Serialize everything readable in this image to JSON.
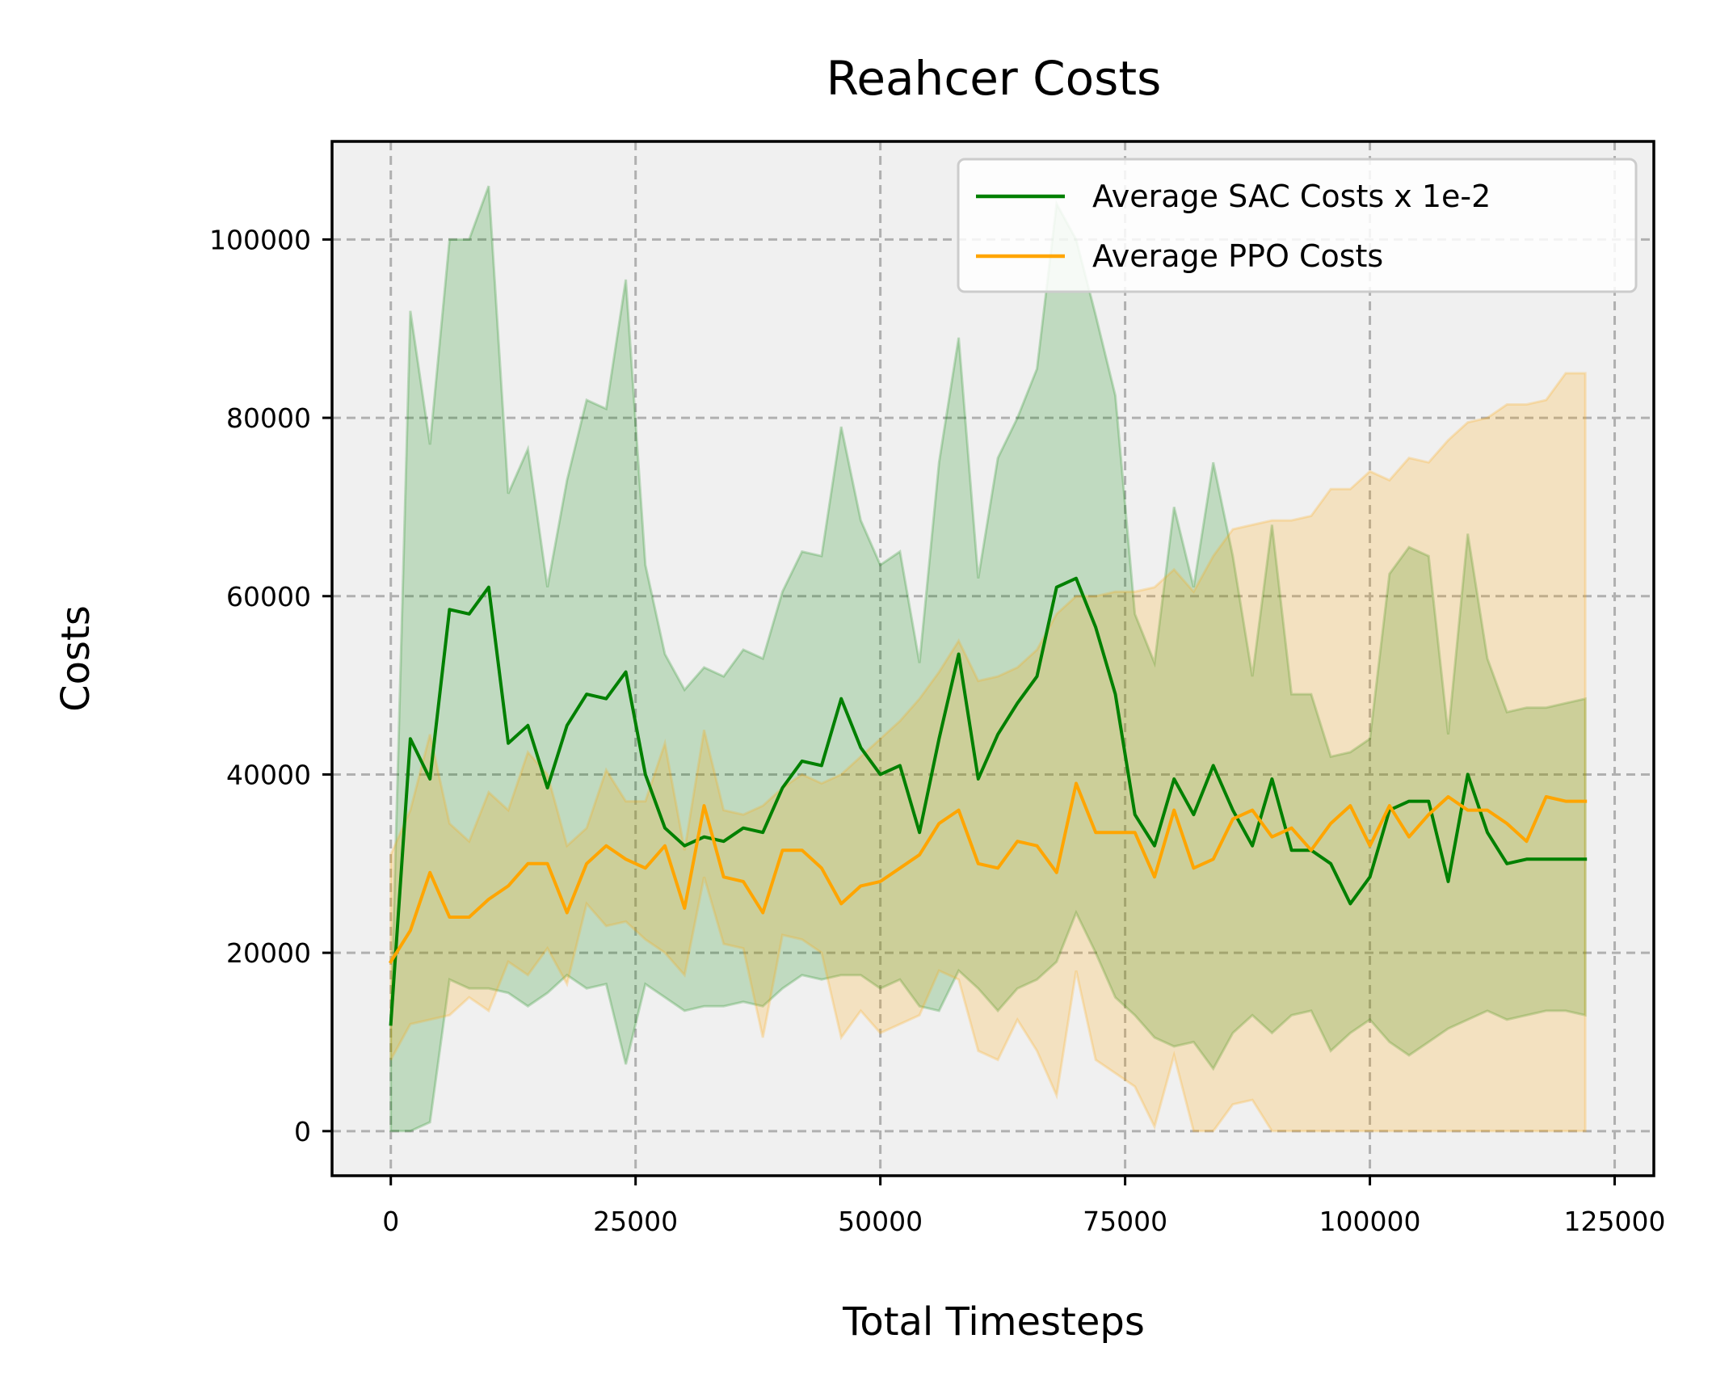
{
  "chart_data": {
    "type": "line",
    "title": "Reahcer Costs",
    "xlabel": "Total Timesteps",
    "ylabel": "Costs",
    "xlim": [
      -6000,
      129000
    ],
    "ylim": [
      -5000,
      111000
    ],
    "xticks": [
      0,
      25000,
      50000,
      75000,
      100000,
      125000
    ],
    "yticks": [
      0,
      20000,
      40000,
      60000,
      80000,
      100000
    ],
    "grid": true,
    "legend_position": "top-right",
    "x": [
      0,
      2000,
      4000,
      6000,
      8000,
      10000,
      12000,
      14000,
      16000,
      18000,
      20000,
      22000,
      24000,
      26000,
      28000,
      30000,
      32000,
      34000,
      36000,
      38000,
      40000,
      42000,
      44000,
      46000,
      48000,
      50000,
      52000,
      54000,
      56000,
      58000,
      60000,
      62000,
      64000,
      66000,
      68000,
      70000,
      72000,
      74000,
      76000,
      78000,
      80000,
      82000,
      84000,
      86000,
      88000,
      90000,
      92000,
      94000,
      96000,
      98000,
      100000,
      102000,
      104000,
      106000,
      108000,
      110000,
      112000,
      114000,
      116000,
      118000,
      120000,
      122000
    ],
    "series": [
      {
        "name": "Average SAC Costs x 1e-2",
        "color": "#008000",
        "fill_color": "#008000",
        "values": [
          12000,
          44000,
          39500,
          58500,
          58000,
          61000,
          43500,
          45500,
          38500,
          45500,
          49000,
          48500,
          51500,
          40000,
          34000,
          32000,
          33000,
          32500,
          34000,
          33500,
          38500,
          41500,
          41000,
          48500,
          43000,
          40000,
          41000,
          33500,
          44000,
          53500,
          39500,
          44500,
          48000,
          51000,
          61000,
          62000,
          56500,
          49000,
          35500,
          32000,
          39500,
          35500,
          41000,
          36000,
          32000,
          39500,
          31500,
          31500,
          30000,
          25500,
          28500,
          36000,
          37000,
          37000,
          28000,
          40000,
          33500,
          30000,
          30500,
          30500,
          30500,
          30500
        ],
        "upper": [
          null,
          92000,
          77000,
          100000,
          100000,
          106000,
          71500,
          76500,
          61000,
          73000,
          82000,
          81000,
          95500,
          63500,
          53500,
          49500,
          52000,
          51000,
          54000,
          53000,
          60500,
          65000,
          64500,
          79000,
          68500,
          63500,
          65000,
          52500,
          75000,
          89000,
          62000,
          75500,
          80000,
          85500,
          104000,
          100000,
          91500,
          82500,
          58000,
          52500,
          70000,
          61000,
          75000,
          64500,
          51000,
          68000,
          49000,
          49000,
          42000,
          42500,
          44000,
          62500,
          65500,
          64500,
          44500,
          67000,
          53000,
          47000,
          47500,
          47500,
          48000,
          48500
        ],
        "lower": [
          0,
          0,
          1000,
          17000,
          16000,
          16000,
          15500,
          14000,
          15500,
          17500,
          16000,
          16500,
          7500,
          16500,
          15000,
          13500,
          14000,
          14000,
          14500,
          14000,
          16000,
          17500,
          17000,
          17500,
          17500,
          16000,
          17000,
          14000,
          13500,
          18000,
          16000,
          13500,
          16000,
          17000,
          19000,
          24500,
          20000,
          15000,
          13000,
          10500,
          9500,
          10000,
          7000,
          11000,
          13000,
          11000,
          13000,
          13500,
          9000,
          11000,
          12500,
          10000,
          8500,
          10000,
          11500,
          12500,
          13500,
          12500,
          13000,
          13500,
          13500,
          13000
        ]
      },
      {
        "name": "Average PPO Costs",
        "color": "#ffa500",
        "fill_color": "#ffa500",
        "values": [
          19000,
          22500,
          29000,
          24000,
          24000,
          26000,
          27500,
          30000,
          30000,
          24500,
          30000,
          32000,
          30500,
          29500,
          32000,
          25000,
          36500,
          28500,
          28000,
          24500,
          31500,
          31500,
          29500,
          25500,
          27500,
          28000,
          29500,
          31000,
          34500,
          36000,
          30000,
          29500,
          32500,
          32000,
          29000,
          39000,
          33500,
          33500,
          33500,
          28500,
          36000,
          29500,
          30500,
          35000,
          36000,
          33000,
          34000,
          31500,
          34500,
          36500,
          32000,
          36500,
          33000,
          35500,
          37500,
          36000,
          36000,
          34500,
          32500,
          37500,
          37000,
          37000
        ],
        "upper": [
          31000,
          36000,
          44500,
          34500,
          32500,
          38000,
          36000,
          42500,
          40000,
          32000,
          34000,
          40500,
          37000,
          37000,
          43500,
          31500,
          45000,
          36000,
          35500,
          36500,
          38500,
          40000,
          39000,
          40000,
          42000,
          44000,
          46000,
          48500,
          51500,
          55000,
          50500,
          51000,
          52000,
          54000,
          58000,
          60000,
          60000,
          60500,
          60500,
          61000,
          63000,
          60500,
          64500,
          67500,
          68000,
          68500,
          68500,
          69000,
          72000,
          72000,
          74000,
          73000,
          75500,
          75000,
          77500,
          79500,
          80000,
          81500,
          81500,
          82000,
          85000,
          85000
        ],
        "lower": [
          8000,
          12000,
          12500,
          13000,
          15000,
          13500,
          19000,
          17500,
          20500,
          16500,
          25500,
          23000,
          23500,
          21500,
          20000,
          17500,
          28500,
          21000,
          20500,
          10500,
          22000,
          21500,
          20000,
          10500,
          13500,
          11000,
          12000,
          13000,
          18000,
          17000,
          9000,
          8000,
          12500,
          9000,
          4000,
          18000,
          8000,
          6500,
          5000,
          500,
          8500,
          0,
          0,
          3000,
          3500,
          0,
          0,
          0,
          0,
          0,
          0,
          0,
          0,
          0,
          0,
          0,
          0,
          0,
          0,
          0,
          0,
          0
        ]
      }
    ]
  }
}
